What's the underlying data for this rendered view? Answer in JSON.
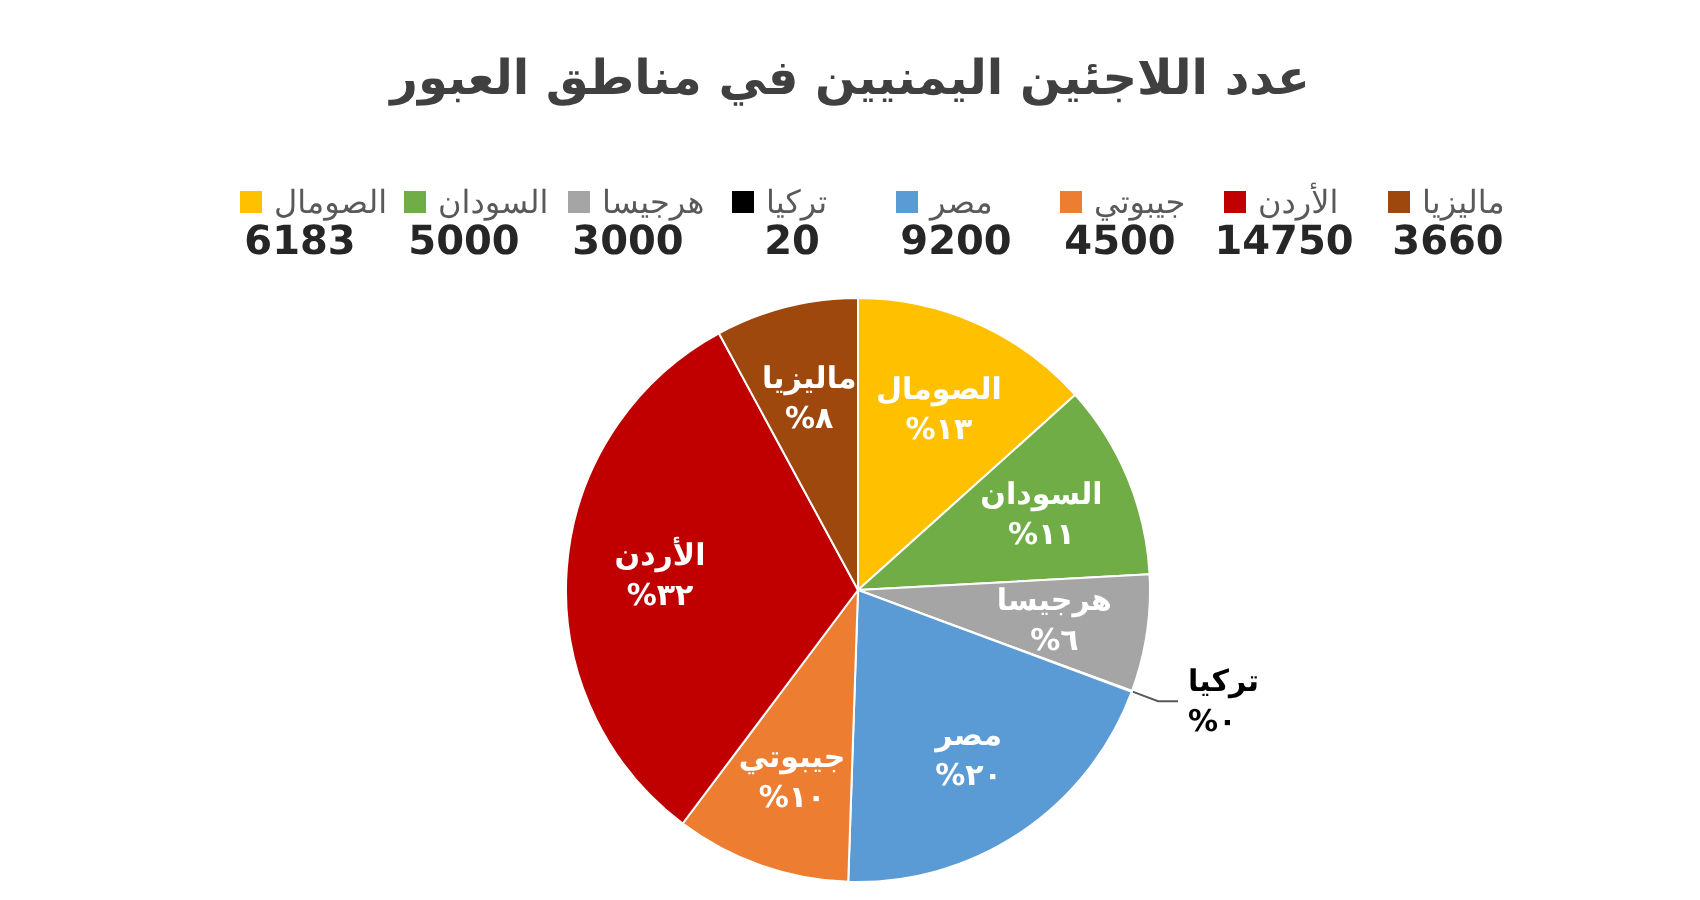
{
  "chart_data": {
    "type": "pie",
    "title": "عدد اللاجئين اليمنيين في مناطق العبور",
    "categories": [
      "الصومال",
      "السودان",
      "هرجيسا",
      "تركيا",
      "مصر",
      "جيبوتي",
      "الأردن",
      "ماليزيا"
    ],
    "values": [
      6183,
      5000,
      3000,
      20,
      9200,
      4500,
      14750,
      3660
    ],
    "colors": [
      "#ffc000",
      "#70ad47",
      "#a5a5a5",
      "#000000",
      "#5b9bd5",
      "#ed7d31",
      "#c00000",
      "#9e480e"
    ],
    "annotations": [
      {
        "text": "%١٣",
        "x": "الصومال"
      },
      {
        "text": "%١١",
        "x": "السودان"
      },
      {
        "text": "%٦",
        "x": "هرجيسا"
      },
      {
        "text": "%٠",
        "x": "تركيا"
      },
      {
        "text": "%٢٠",
        "x": "مصر"
      },
      {
        "text": "%١٠",
        "x": "جيبوتي"
      },
      {
        "text": "%٣٢",
        "x": "الأردن"
      },
      {
        "text": "%٨",
        "x": "ماليزيا"
      }
    ],
    "data_labels": true,
    "legend": "top"
  }
}
